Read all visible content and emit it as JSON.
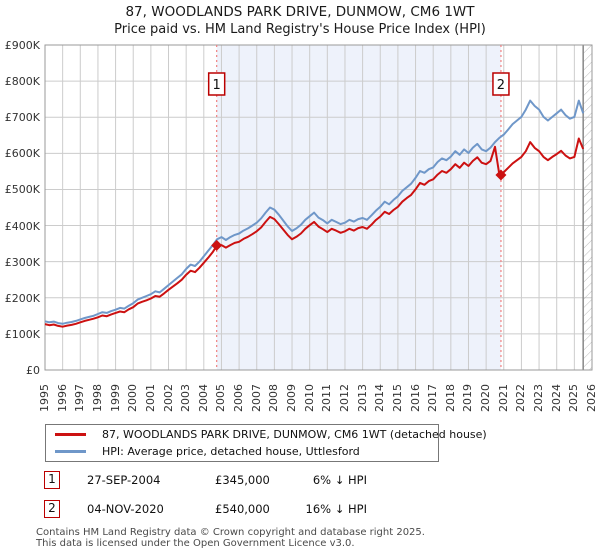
{
  "title": {
    "line1": "87, WOODLANDS PARK DRIVE, DUNMOW, CM6 1WT",
    "line2": "Price paid vs. HM Land Registry's House Price Index (HPI)"
  },
  "colors": {
    "price_line": "#cc1111",
    "hpi_line": "#6f97c9",
    "band": "#eef2fb",
    "grid": "#cccccc",
    "plot_border": "#999999",
    "dotted_sale_line": "#f08080",
    "flag_border": "#bb0000",
    "hatch": "#bbbbbb"
  },
  "chart_data": {
    "type": "line",
    "title": "87, WOODLANDS PARK DRIVE, DUNMOW, CM6 1WT — Price paid vs. HPI",
    "xlabel": "",
    "ylabel": "",
    "unit": "thousands of GBP (£K)",
    "x_axis": {
      "min": 1995,
      "max": 2026,
      "tick_step": 1
    },
    "y_axis": {
      "min": 0,
      "max": 900,
      "tick_labels": [
        "£0",
        "£100K",
        "£200K",
        "£300K",
        "£400K",
        "£500K",
        "£600K",
        "£700K",
        "£800K",
        "£900K"
      ]
    },
    "grid": true,
    "legend_position": "bottom",
    "ownership_band": {
      "start": 2004.73,
      "end": 2020.84
    },
    "future_hatch_start": 2025.5,
    "sale_markers": [
      {
        "label": "1",
        "x": 2004.73,
        "value_gbp": 345000
      },
      {
        "label": "2",
        "x": 2020.84,
        "value_gbp": 540000
      }
    ],
    "series": [
      {
        "name": "87, WOODLANDS PARK DRIVE, DUNMOW, CM6 1WT (detached house)",
        "color": "#cc1111",
        "x_start": 1995,
        "x_step": 0.25,
        "values": [
          127,
          124,
          126,
          122,
          120,
          123,
          125,
          128,
          132,
          136,
          139,
          142,
          146,
          151,
          149,
          154,
          158,
          162,
          160,
          168,
          174,
          184,
          189,
          193,
          198,
          205,
          203,
          212,
          222,
          231,
          240,
          250,
          264,
          275,
          271,
          283,
          297,
          311,
          326,
          345,
          346,
          339,
          346,
          352,
          355,
          363,
          369,
          376,
          384,
          395,
          410,
          424,
          418,
          404,
          389,
          374,
          362,
          369,
          378,
          391,
          401,
          410,
          397,
          390,
          382,
          391,
          386,
          380,
          384,
          391,
          386,
          393,
          396,
          391,
          402,
          415,
          425,
          438,
          432,
          443,
          452,
          466,
          476,
          485,
          500,
          518,
          513,
          523,
          528,
          541,
          551,
          546,
          556,
          570,
          560,
          574,
          565,
          579,
          589,
          574,
          570,
          579,
          618,
          540,
          548,
          560,
          572,
          581,
          590,
          606,
          631,
          615,
          606,
          590,
          581,
          590,
          598,
          607,
          594,
          586,
          590,
          641,
          612
        ]
      },
      {
        "name": "HPI: Average price, detached house, Uttlesford",
        "color": "#6f97c9",
        "x_start": 1995,
        "x_step": 0.25,
        "values": [
          135,
          132,
          134,
          130,
          128,
          131,
          133,
          136,
          140,
          144,
          147,
          150,
          155,
          160,
          158,
          163,
          167,
          172,
          170,
          178,
          185,
          195,
          200,
          205,
          210,
          218,
          215,
          225,
          235,
          245,
          255,
          265,
          280,
          292,
          288,
          300,
          315,
          330,
          345,
          362,
          368,
          360,
          368,
          374,
          378,
          386,
          392,
          400,
          408,
          420,
          436,
          450,
          444,
          430,
          414,
          398,
          385,
          392,
          402,
          416,
          426,
          436,
          422,
          415,
          406,
          416,
          410,
          404,
          408,
          416,
          411,
          418,
          421,
          416,
          428,
          441,
          452,
          466,
          459,
          471,
          481,
          496,
          506,
          516,
          532,
          551,
          546,
          556,
          561,
          576,
          586,
          581,
          591,
          606,
          596,
          611,
          601,
          616,
          626,
          611,
          606,
          616,
          631,
          643,
          652,
          666,
          681,
          691,
          701,
          721,
          746,
          731,
          721,
          701,
          691,
          701,
          711,
          721,
          706,
          696,
          701,
          746,
          711
        ]
      }
    ]
  },
  "legend": {
    "items": [
      {
        "label": "87, WOODLANDS PARK DRIVE, DUNMOW, CM6 1WT (detached house)",
        "color": "#cc1111"
      },
      {
        "label": "HPI: Average price, detached house, Uttlesford",
        "color": "#6f97c9"
      }
    ]
  },
  "sales": [
    {
      "num": "1",
      "date": "27-SEP-2004",
      "price": "£345,000",
      "delta": "6% ↓ HPI"
    },
    {
      "num": "2",
      "date": "04-NOV-2020",
      "price": "£540,000",
      "delta": "16% ↓ HPI"
    }
  ],
  "footer": {
    "line1": "Contains HM Land Registry data © Crown copyright and database right 2025.",
    "line2": "This data is licensed under the Open Government Licence v3.0."
  }
}
